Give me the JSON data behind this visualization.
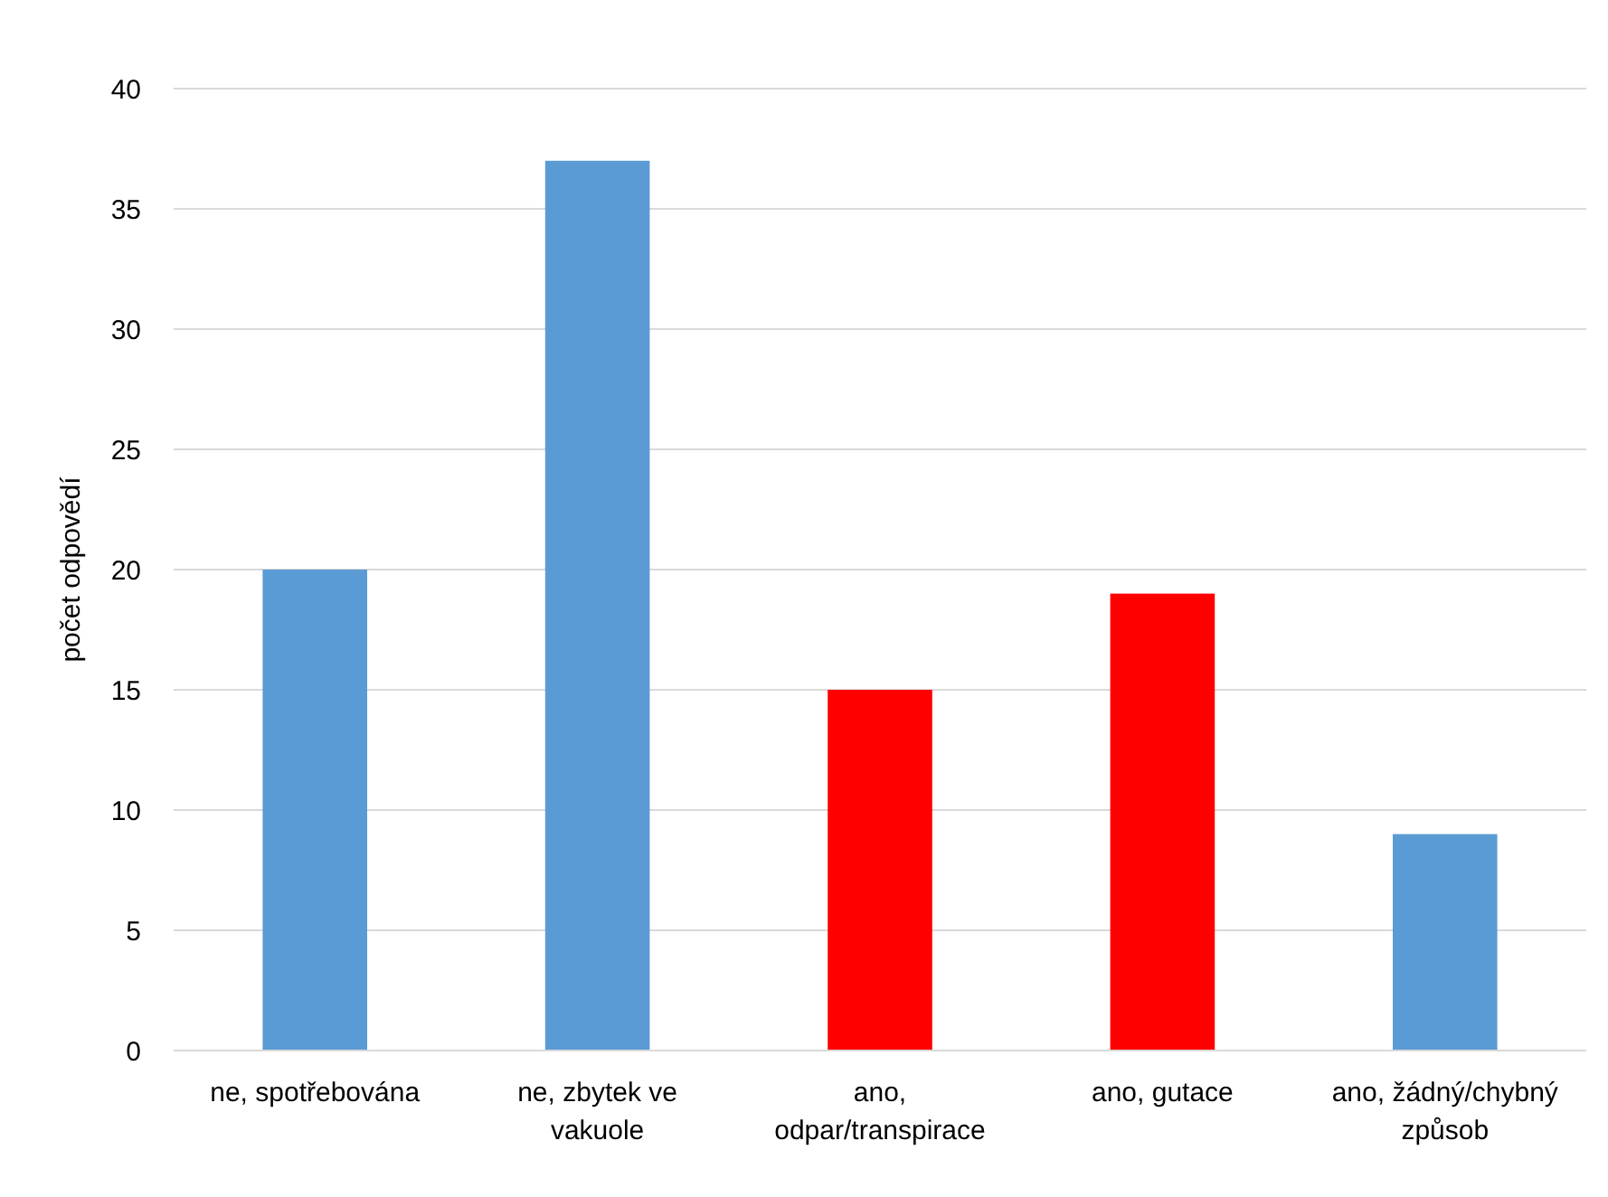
{
  "chart_data": {
    "type": "bar",
    "ylabel": "počet odpovědí",
    "categories": [
      "ne, spotřebována",
      "ne, zbytek ve vakuole",
      "ano, odpar/transpirace",
      "ano, gutace",
      "ano, žádný/chybný způsob"
    ],
    "values": [
      20,
      37,
      15,
      19,
      9
    ],
    "colors": [
      "#5b9bd5",
      "#5b9bd5",
      "#ff0000",
      "#ff0000",
      "#5b9bd5"
    ],
    "ylim": [
      0,
      40
    ],
    "yticks": [
      0,
      5,
      10,
      15,
      20,
      25,
      30,
      35,
      40
    ],
    "grid": "y"
  }
}
